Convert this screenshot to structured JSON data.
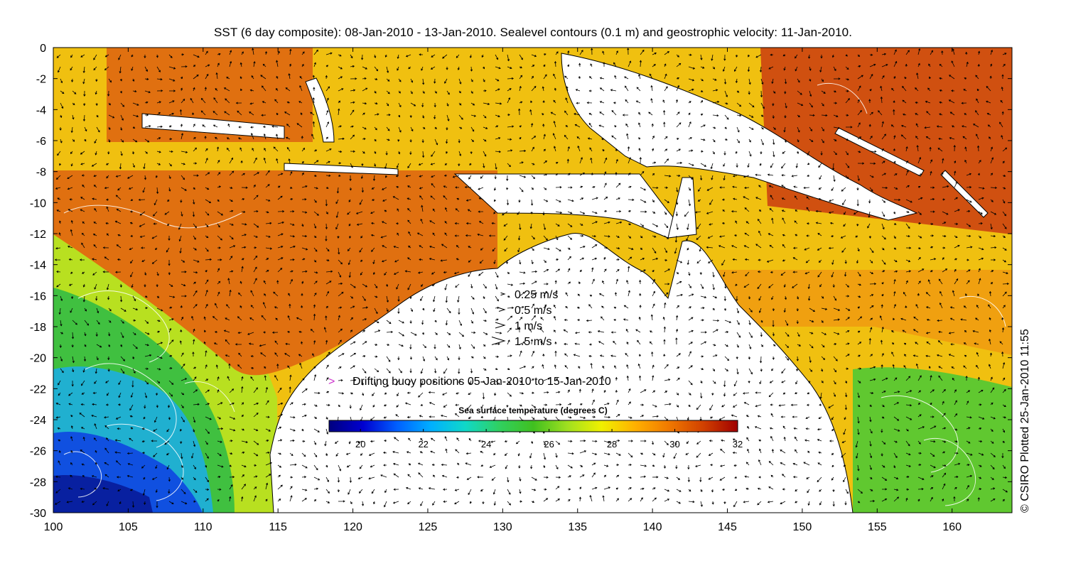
{
  "title": "SST (6 day composite): 08-Jan-2010 - 13-Jan-2010. Sealevel contours (0.1 m) and geostrophic velocity: 11-Jan-2010.",
  "credit": "© CSIRO Plotted 25-Jan-2010 11:55",
  "map": {
    "lon_range": [
      100,
      164
    ],
    "lat_range": [
      -30,
      0
    ],
    "x_ticks": [
      100,
      105,
      110,
      115,
      120,
      125,
      130,
      135,
      140,
      145,
      150,
      155,
      160
    ],
    "y_ticks": [
      0,
      -2,
      -4,
      -6,
      -8,
      -10,
      -12,
      -14,
      -16,
      -18,
      -20,
      -22,
      -24,
      -26,
      -28,
      -30
    ],
    "land_color": "#ffffff",
    "coast_color": "#000000",
    "contour_color": "#ffffff",
    "buoy_color": "#cc33cc"
  },
  "velocity_legend": [
    {
      "speed": 0.25,
      "label": "0.25 m/s"
    },
    {
      "speed": 0.5,
      "label": "0.5 m/s"
    },
    {
      "speed": 1,
      "label": "1 m/s"
    },
    {
      "speed": 1.5,
      "label": "1.5 m/s"
    }
  ],
  "buoy_legend": {
    "label": "Drifting buoy positions 05-Jan-2010 to 15-Jan-2010",
    "marker": ">"
  },
  "colorbar": {
    "title": "Sea surface temperature (degrees C)",
    "range": [
      19,
      32
    ],
    "ticks": [
      20,
      22,
      24,
      26,
      28,
      30,
      32
    ],
    "stops": [
      "#00007f",
      "#0000d0",
      "#0060ff",
      "#00b0ff",
      "#10d8c8",
      "#30d060",
      "#40c020",
      "#a0e020",
      "#f0f000",
      "#ffb000",
      "#f07800",
      "#d04000",
      "#a00000"
    ]
  }
}
